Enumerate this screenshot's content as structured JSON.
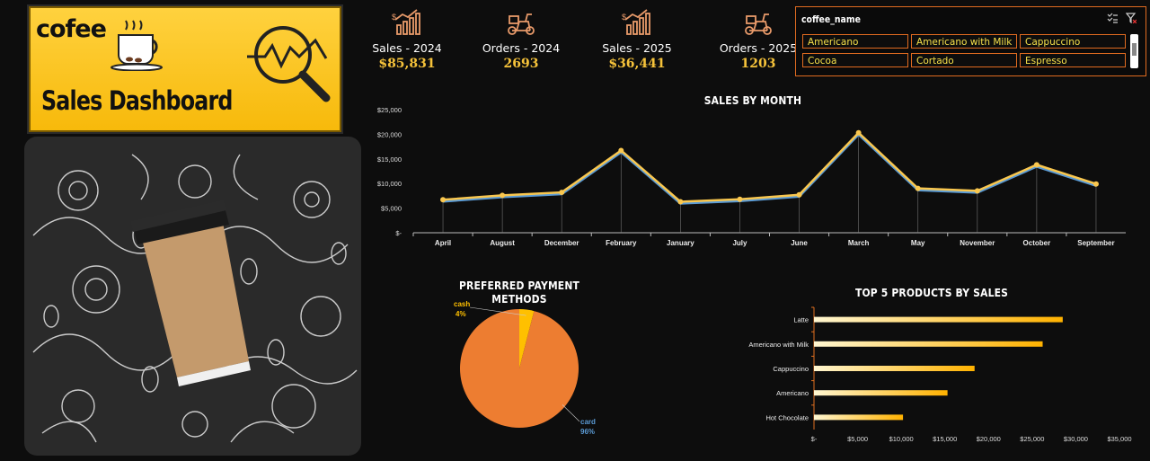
{
  "banner": {
    "brand": "cofee",
    "title": "Sales Dashboard"
  },
  "kpis": [
    {
      "label": "Sales - 2024",
      "value": "$85,831",
      "icon": "bar-growth-icon"
    },
    {
      "label": "Orders - 2024",
      "value": "2693",
      "icon": "delivery-scooter-icon"
    },
    {
      "label": "Sales - 2025",
      "value": "$36,441",
      "icon": "bar-growth-icon"
    },
    {
      "label": "Orders - 2025",
      "value": "1203",
      "icon": "delivery-scooter-icon"
    }
  ],
  "slicer": {
    "title": "coffee_name",
    "items": [
      "Americano",
      "Americano with Milk",
      "Cappuccino",
      "Cocoa",
      "Cortado",
      "Espresso"
    ]
  },
  "colors": {
    "accent": "#f5c23a",
    "orange": "#ed7d31",
    "line": "#f9c74f",
    "line_shadow": "#5b9bd5",
    "bar": "#ffb200"
  },
  "chart_data": [
    {
      "type": "line",
      "title": "SALES BY MONTH",
      "categories": [
        "April",
        "August",
        "December",
        "February",
        "January",
        "July",
        "June",
        "March",
        "May",
        "November",
        "October",
        "September"
      ],
      "values": [
        6700,
        7600,
        8200,
        16700,
        6300,
        6800,
        7700,
        20300,
        9000,
        8500,
        13800,
        9900
      ],
      "yticks": [
        "$-",
        "$5,000",
        "$10,000",
        "$15,000",
        "$20,000",
        "$25,000"
      ],
      "ylim": [
        0,
        25000
      ]
    },
    {
      "type": "pie",
      "title": "PREFERRED PAYMENT METHODS",
      "labels": [
        "cash",
        "card"
      ],
      "values": [
        4,
        96
      ],
      "pct_labels": [
        "4%",
        "96%"
      ]
    },
    {
      "type": "bar",
      "title": "TOP 5 PRODUCTS BY SALES",
      "categories": [
        "Latte",
        "Americano with Milk",
        "Cappuccino",
        "Americano",
        "Hot Chocolate"
      ],
      "values": [
        28500,
        26200,
        18400,
        15300,
        10200
      ],
      "xticks": [
        "$-",
        "$5,000",
        "$10,000",
        "$15,000",
        "$20,000",
        "$25,000",
        "$30,000",
        "$35,000"
      ],
      "xlim": [
        0,
        35000
      ]
    }
  ]
}
